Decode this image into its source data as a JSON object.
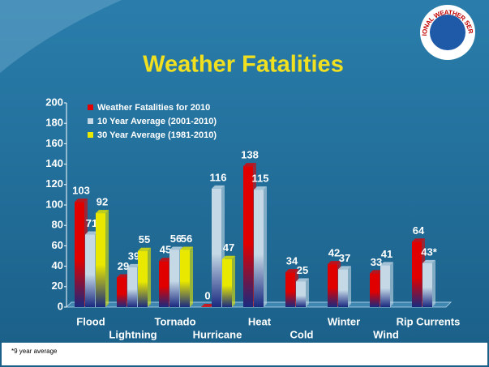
{
  "logo_text": "NATIONAL WEATHER SERVICE",
  "chart_data": {
    "type": "bar",
    "title": "Weather Fatalities",
    "categories": [
      "Flood",
      "Lightning",
      "Tornado",
      "Hurricane",
      "Heat",
      "Cold",
      "Winter",
      "Wind",
      "Rip Currents"
    ],
    "series": [
      {
        "name": "Weather Fatalities for 2010",
        "color": "#e00000",
        "values": [
          103,
          29,
          45,
          0,
          138,
          34,
          42,
          33,
          64
        ]
      },
      {
        "name": "10 Year Average (2001-2010)",
        "color": "#c4d8e6",
        "values": [
          71,
          39,
          56,
          116,
          115,
          25,
          37,
          41,
          43
        ],
        "value_labels": [
          "71",
          "39",
          "56",
          "116",
          "115",
          "25",
          "37",
          "41",
          "43*"
        ]
      },
      {
        "name": "30 Year Average (1981-2010)",
        "color": "#e8e800",
        "values": [
          92,
          55,
          56,
          47,
          null,
          null,
          null,
          null,
          null
        ]
      }
    ],
    "ylim": [
      0,
      200
    ],
    "yticks": [
      0,
      20,
      40,
      60,
      80,
      100,
      120,
      140,
      160,
      180,
      200
    ],
    "legend": "upper left",
    "note": "*9 year average"
  }
}
